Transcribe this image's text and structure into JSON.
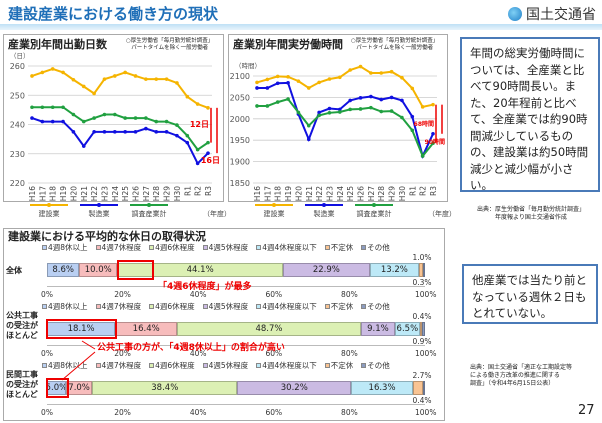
{
  "header": {
    "title": "建設産業における働き方の現状",
    "org": "国土交通省"
  },
  "colors": {
    "construction": "#f5b400",
    "manufacturing": "#1010e0",
    "all_industries": "#20a040",
    "annotation": "#e00000"
  },
  "chart_data": [
    {
      "type": "line",
      "title": "産業別年間出勤日数",
      "source": "○厚生労働省「毎月勤労統計調査」\nパートタイムを除く一般労働者",
      "ylabel": "（日）",
      "xlabel": "（年度）",
      "ylim": [
        220,
        260
      ],
      "yticks": [
        220,
        230,
        240,
        250,
        260
      ],
      "grid": true,
      "legend": "bottom",
      "categories": [
        "H16",
        "H17",
        "H18",
        "H19",
        "H20",
        "H21",
        "H22",
        "H23",
        "H24",
        "H25",
        "H26",
        "H27",
        "H28",
        "H29",
        "H30",
        "R1",
        "R2",
        "R3"
      ],
      "series": [
        {
          "name": "建設業",
          "values": [
            256.6,
            257.8,
            259,
            257.8,
            255.3,
            253,
            250.6,
            255.5,
            256.6,
            257.8,
            256.6,
            255.5,
            255.5,
            255.5,
            254.2,
            249.5,
            247,
            245.7
          ]
        },
        {
          "name": "製造業",
          "values": [
            242.2,
            241,
            241,
            241,
            237.5,
            232.6,
            237.5,
            237.5,
            237.5,
            237.5,
            237.5,
            238.6,
            237.5,
            237.5,
            236.2,
            233.8,
            226.7,
            230.2
          ]
        },
        {
          "name": "調査産業計",
          "values": [
            245.9,
            245.9,
            245.9,
            245.9,
            243.4,
            241,
            242.2,
            243.4,
            243.4,
            242.2,
            242.2,
            242.2,
            241,
            241,
            239.8,
            236.2,
            231.4,
            233.8
          ]
        }
      ],
      "annotations": [
        "12日",
        "16日"
      ]
    },
    {
      "type": "line",
      "title": "産業別年間実労働時間",
      "source": "○厚生労働省「毎月勤労統計調査」\nパートタイムを除く一般労働者",
      "ylabel": "（時間）",
      "xlabel": "（年度）",
      "ylim": [
        1850,
        2100
      ],
      "yticks": [
        1850,
        1900,
        1950,
        2000,
        2050,
        2100
      ],
      "grid": true,
      "legend": "bottom",
      "categories": [
        "H16",
        "H17",
        "H18",
        "H19",
        "H20",
        "H21",
        "H22",
        "H23",
        "H24",
        "H25",
        "H26",
        "H27",
        "H28",
        "H29",
        "H30",
        "R1",
        "R2",
        "R3"
      ],
      "series": [
        {
          "name": "建設業",
          "values": [
            2085,
            2092,
            2099,
            2098,
            2088,
            2072,
            2085,
            2093,
            2097,
            2114,
            2122,
            2107,
            2107,
            2110,
            2096,
            2071,
            2028,
            2033
          ]
        },
        {
          "name": "製造業",
          "values": [
            2072,
            2072,
            2083,
            2084,
            2011,
            1952,
            2015,
            2024,
            2022,
            2043,
            2049,
            2052,
            2045,
            2050,
            2043,
            2005,
            1913,
            1965
          ]
        },
        {
          "name": "調査産業計",
          "values": [
            2030,
            2030,
            2039,
            2046,
            2015,
            1984,
            2008,
            2014,
            2016,
            2022,
            2023,
            2026,
            2017,
            2018,
            2003,
            1973,
            1913,
            1943
          ]
        }
      ],
      "annotations": [
        "68時間",
        "90時間"
      ]
    },
    {
      "type": "bar",
      "stacked": true,
      "orientation": "horizontal",
      "title": "建設業における平均的な休日の取得状況",
      "legend_labels": [
        "4週8休以上",
        "4週7休程度",
        "4週6休程度",
        "4週5休程度",
        "4週4休程度以下",
        "不定休",
        "その他"
      ],
      "segment_colors": [
        "#b9cff2",
        "#f7bcbc",
        "#dcf0b4",
        "#cbbbe3",
        "#bde9f7",
        "#f9c493",
        "#8c9cc0"
      ],
      "xticks": [
        "0%",
        "20%",
        "40%",
        "60%",
        "80%",
        "100%"
      ],
      "rows": [
        {
          "label": "全体",
          "values": [
            8.6,
            10.0,
            44.1,
            22.9,
            13.2,
            1.0,
            0.3
          ],
          "labels": [
            "8.6%",
            "10.0%",
            "44.1%",
            "22.9%",
            "13.2%",
            "1.0%",
            "0.3%"
          ]
        },
        {
          "label": "公共工事の受注がほとんど",
          "values": [
            18.1,
            16.4,
            48.7,
            9.1,
            6.5,
            0.4,
            0.9
          ],
          "labels": [
            "18.1%",
            "16.4%",
            "48.7%",
            "9.1%",
            "6.5%",
            "0.4%",
            "0.9%"
          ]
        },
        {
          "label": "民間工事の受注がほとんど",
          "values": [
            5.0,
            7.0,
            38.4,
            30.2,
            16.3,
            2.7,
            0.4
          ],
          "labels": [
            "5.0%",
            "7.0%",
            "38.4%",
            "30.2%",
            "16.3%",
            "2.7%",
            "0.4%"
          ]
        }
      ],
      "annotations": [
        "「4週6休程度」が最多",
        "公共工事の方が、「4週8休以上」の割合が高い"
      ]
    }
  ],
  "callouts": {
    "top": "年間の総実労働時間については、全産業と比べて90時間長い。また、20年程前と比べて、全産業では約90時間減少しているものの、建設業は約50時間減少と減少幅が小さい。",
    "bottom": "他産業では当たり前となっている週休２日もとれていない。"
  },
  "sources": {
    "top": "出典：厚生労働省「毎月勤労統計調査」\n年度報より国土交通省作成",
    "bottom": "出典：国土交通省「適正な工期設定等\nによる働き方改革の推進に関する\n調査」（令和4年6月15日公表）"
  },
  "page_number": "27"
}
